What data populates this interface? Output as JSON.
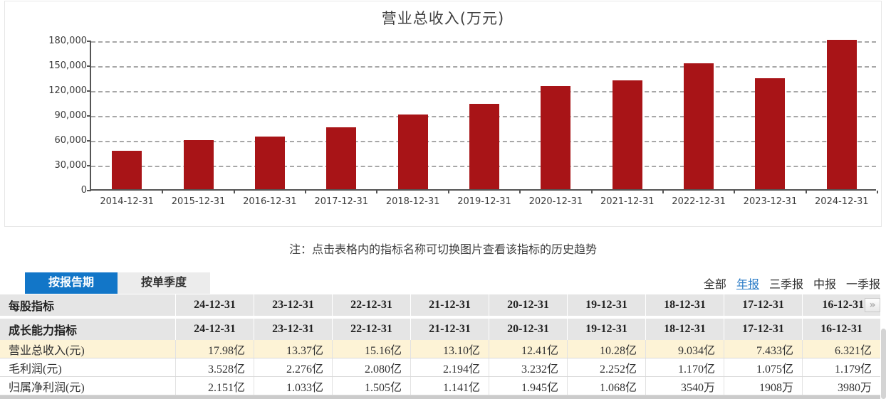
{
  "chart_data": {
    "type": "bar",
    "title": "营业总收入(万元)",
    "categories": [
      "2014-12-31",
      "2015-12-31",
      "2016-12-31",
      "2017-12-31",
      "2018-12-31",
      "2019-12-31",
      "2020-12-31",
      "2021-12-31",
      "2022-12-31",
      "2023-12-31",
      "2024-12-31"
    ],
    "values": [
      46600,
      59100,
      63210,
      74330,
      90340,
      102800,
      124100,
      131000,
      151600,
      133700,
      179800
    ],
    "y_tick_labels": [
      "0",
      "30,000",
      "60,000",
      "90,000",
      "120,000",
      "150,000",
      "180,000"
    ],
    "y_tick_values": [
      0,
      30000,
      60000,
      90000,
      120000,
      150000,
      180000
    ],
    "ylim": [
      0,
      180000
    ],
    "xlabel": "",
    "ylabel": "",
    "grid": "dashed horizontal",
    "legend": "none",
    "bar_color": "#a81417"
  },
  "note": "注：点击表格内的指标名称可切换图片查看该指标的历史趋势",
  "tabs": [
    {
      "label": "按报告期",
      "active": true
    },
    {
      "label": "按单季度",
      "active": false
    }
  ],
  "filters": [
    {
      "label": "全部",
      "active": false
    },
    {
      "label": "年报",
      "active": true
    },
    {
      "label": "三季报",
      "active": false
    },
    {
      "label": "中报",
      "active": false
    },
    {
      "label": "一季报",
      "active": false
    }
  ],
  "table": {
    "dates": [
      "24-12-31",
      "23-12-31",
      "22-12-31",
      "21-12-31",
      "20-12-31",
      "19-12-31",
      "18-12-31",
      "17-12-31",
      "16-12-31"
    ],
    "header_rows": [
      {
        "label": "每股指标",
        "has_expand": true
      },
      {
        "label": "成长能力指标",
        "has_expand": false
      }
    ],
    "expand_icon": "»",
    "rows": [
      {
        "label": "营业总收入(元)",
        "highlight": true,
        "values": [
          "17.98亿",
          "13.37亿",
          "15.16亿",
          "13.10亿",
          "12.41亿",
          "10.28亿",
          "9.034亿",
          "7.433亿",
          "6.321亿"
        ]
      },
      {
        "label": "毛利润(元)",
        "highlight": false,
        "values": [
          "3.528亿",
          "2.276亿",
          "2.080亿",
          "2.194亿",
          "3.232亿",
          "2.252亿",
          "1.170亿",
          "1.075亿",
          "1.179亿"
        ]
      },
      {
        "label": "归属净利润(元)",
        "highlight": false,
        "values": [
          "2.151亿",
          "1.033亿",
          "1.505亿",
          "1.141亿",
          "1.945亿",
          "1.068亿",
          "3540万",
          "1908万",
          "3980万"
        ]
      }
    ]
  },
  "colors": {
    "bar": "#a81417",
    "tab_active_bg": "#1276c8",
    "link_active": "#2b7cc7",
    "header_bg": "#e5e5e5",
    "highlight_bg": "#fdf3d6"
  }
}
